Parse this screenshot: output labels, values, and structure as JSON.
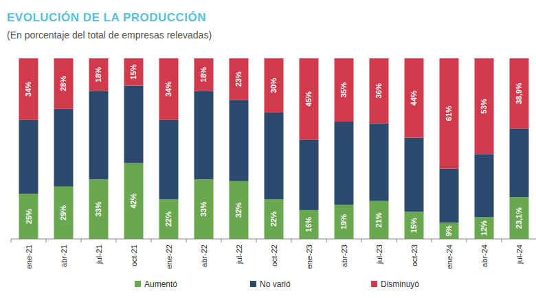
{
  "chart_data": {
    "type": "bar",
    "title": "EVOLUCIÓN DE LA PRODUCCIÓN",
    "subtitle": "(En porcentaje del total de empresas relevadas)",
    "categories": [
      "ene-21",
      "abr-21",
      "jul-21",
      "oct-21",
      "ene-22",
      "abr-22",
      "jul-22",
      "oct-22",
      "ene-23",
      "abr-23",
      "jul-23",
      "oct-23",
      "ene-24",
      "abr-24",
      "jul-24"
    ],
    "series": [
      {
        "name": "Aumentó",
        "color": "#6aa84f",
        "data_labels": true,
        "values": [
          25,
          29,
          33,
          42,
          22,
          33,
          32,
          22,
          16,
          19,
          21,
          15,
          9,
          12,
          23.1
        ],
        "value_labels": [
          "25%",
          "29%",
          "33%",
          "42%",
          "22%",
          "33%",
          "32%",
          "22%",
          "16%",
          "19%",
          "21%",
          "15%",
          "9%",
          "12%",
          "23,1%"
        ]
      },
      {
        "name": "No varió",
        "color": "#2c4a6e",
        "data_labels": false,
        "values": [
          41,
          43,
          49,
          43,
          44,
          49,
          45,
          48,
          39,
          46,
          43,
          41,
          30,
          35,
          38
        ]
      },
      {
        "name": "Disminuyó",
        "color": "#d13a4b",
        "data_labels": true,
        "values": [
          34,
          28,
          18,
          15,
          34,
          18,
          23,
          30,
          45,
          35,
          36,
          44,
          61,
          53,
          38.9
        ],
        "value_labels": [
          "34%",
          "28%",
          "18%",
          "15%",
          "34%",
          "18%",
          "23%",
          "30%",
          "45%",
          "35%",
          "36%",
          "44%",
          "61%",
          "53%",
          "38,9%"
        ]
      }
    ],
    "ylim": [
      0,
      100
    ],
    "stacked": true,
    "grid": false,
    "legend": "bottom",
    "tick_labels": "x"
  }
}
